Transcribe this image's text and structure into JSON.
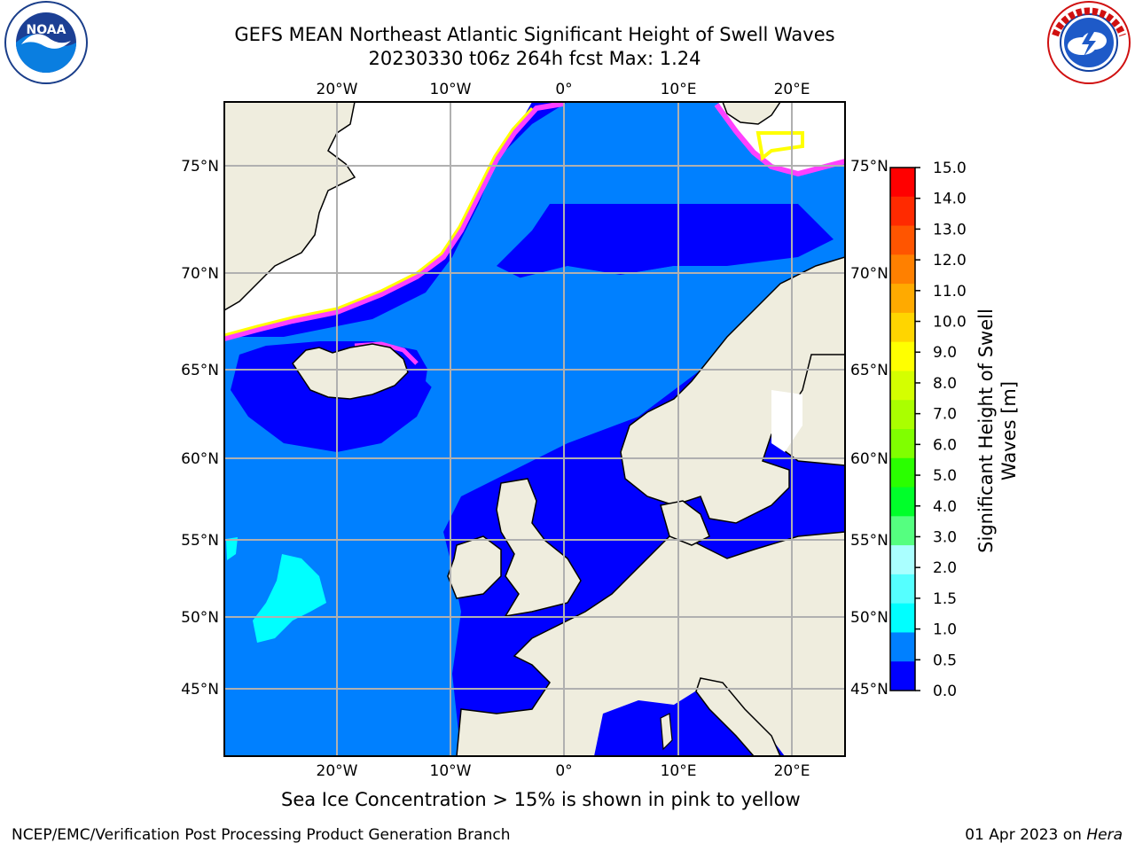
{
  "title": {
    "line1": "GEFS MEAN Northeast Atlantic Significant Height of Swell Waves",
    "line2": "20230330 t06z 264h fcst   Max: 1.24"
  },
  "logos": {
    "left": {
      "icon": "noaa-logo-icon",
      "text": "NOAA"
    },
    "right": {
      "icon": "nws-logo-icon",
      "text": "NATIONAL WEATHER SERVICE"
    }
  },
  "map": {
    "lon_labels": [
      "20°W",
      "10°W",
      "0°",
      "10°E",
      "20°E"
    ],
    "lat_labels": [
      "75°N",
      "70°N",
      "65°N",
      "60°N",
      "55°N",
      "50°N",
      "45°N"
    ],
    "colors": {
      "land": "#efedde",
      "ice_free_white": "#ffffff",
      "sea_low": "#0000ff",
      "sea_mid": "#0080ff",
      "sea_cyan": "#00ffff",
      "ice_pink": "#ff40ff",
      "ice_yellow": "#ffff00",
      "grid": "#b0b0b0"
    }
  },
  "colorbar": {
    "label": "Significant Height of Swell Waves [m]",
    "ticks": [
      "15.0",
      "14.0",
      "13.0",
      "12.0",
      "11.0",
      "10.0",
      "9.0",
      "8.0",
      "7.0",
      "6.0",
      "5.0",
      "4.0",
      "3.0",
      "2.0",
      "1.5",
      "1.0",
      "0.5",
      "0.0"
    ],
    "colors": [
      "#ff0000",
      "#ff2a00",
      "#ff5500",
      "#ff8000",
      "#ffaa00",
      "#ffd500",
      "#ffff00",
      "#d4ff00",
      "#aaff00",
      "#80ff00",
      "#2aff00",
      "#00ff2a",
      "#55ff80",
      "#aaffff",
      "#55ffff",
      "#00ffff",
      "#0080ff",
      "#0000ff"
    ]
  },
  "caption": "Sea Ice Concentration > 15% is shown in pink to yellow",
  "footer": {
    "left": "NCEP/EMC/Verification Post Processing Product Generation Branch",
    "right_date": "01 Apr 2023 on ",
    "right_host": "Hera"
  }
}
